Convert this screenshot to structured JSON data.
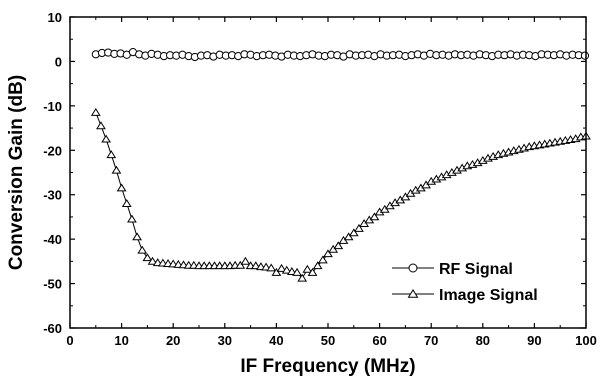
{
  "chart_data": {
    "type": "line",
    "xlabel": "IF Frequency (MHz)",
    "ylabel": "Conversion Gain (dB)",
    "xlim": [
      0,
      100
    ],
    "ylim": [
      -60,
      10
    ],
    "xticks": [
      0,
      10,
      20,
      30,
      40,
      50,
      60,
      70,
      80,
      90,
      100
    ],
    "yticks": [
      -60,
      -50,
      -40,
      -30,
      -20,
      -10,
      0,
      10
    ],
    "grid": false,
    "legend_position": "lower-right",
    "series": [
      {
        "name": "RF Signal",
        "marker": "circle",
        "color": "#000000",
        "x": [
          5,
          6.2,
          7.4,
          8.6,
          9.8,
          11,
          12.2,
          13.4,
          14.6,
          15.8,
          17,
          18.2,
          19.4,
          20.6,
          21.8,
          23,
          24.2,
          25.4,
          26.6,
          27.8,
          29,
          30.2,
          31.4,
          32.6,
          33.8,
          35,
          36.2,
          37.4,
          38.6,
          39.8,
          41,
          42.2,
          43.4,
          44.6,
          45.8,
          47,
          48.2,
          49.4,
          50.6,
          51.8,
          53,
          54.2,
          55.4,
          56.6,
          57.8,
          59,
          60.2,
          61.4,
          62.6,
          63.8,
          65,
          66.2,
          67.4,
          68.6,
          69.8,
          71,
          72.2,
          73.4,
          74.6,
          75.8,
          77,
          78.2,
          79.4,
          80.6,
          81.8,
          83,
          84.2,
          85.4,
          86.6,
          87.8,
          89,
          90.2,
          91.4,
          92.6,
          93.8,
          95,
          96.2,
          97.4,
          98.6,
          99.8
        ],
        "y": [
          1.6,
          1.9,
          2.0,
          1.7,
          1.8,
          1.5,
          2.1,
          1.6,
          1.3,
          1.7,
          1.5,
          1.2,
          1.4,
          1.3,
          1.5,
          1.2,
          1.0,
          1.3,
          1.4,
          1.1,
          1.5,
          1.3,
          1.4,
          1.2,
          1.6,
          1.5,
          1.2,
          1.4,
          1.5,
          1.3,
          1.1,
          1.5,
          1.3,
          1.2,
          1.4,
          1.6,
          1.3,
          1.2,
          1.5,
          1.4,
          1.1,
          1.6,
          1.3,
          1.4,
          1.5,
          1.2,
          1.6,
          1.3,
          1.4,
          1.5,
          1.2,
          1.4,
          1.6,
          1.3,
          1.7,
          1.4,
          1.5,
          1.3,
          1.6,
          1.4,
          1.5,
          1.3,
          1.6,
          1.4,
          1.2,
          1.5,
          1.4,
          1.6,
          1.3,
          1.5,
          1.4,
          1.2,
          1.6,
          1.5,
          1.4,
          1.6,
          1.3,
          1.5,
          1.4,
          1.3
        ]
      },
      {
        "name": "Image Signal",
        "marker": "triangle",
        "color": "#000000",
        "x": [
          5,
          6,
          7,
          8,
          9,
          10,
          11,
          12,
          13,
          14,
          15,
          16,
          17,
          18,
          19,
          20,
          21,
          22,
          23,
          24,
          25,
          26,
          27,
          28,
          29,
          30,
          31,
          32,
          33,
          34,
          35,
          36,
          37,
          38,
          39,
          40,
          41,
          42,
          43,
          44,
          45,
          46,
          47,
          48,
          49,
          50,
          51,
          52,
          53,
          54,
          55,
          56,
          57,
          58,
          59,
          60,
          61,
          62,
          63,
          64,
          65,
          66,
          67,
          68,
          69,
          70,
          71,
          72,
          73,
          74,
          75,
          76,
          77,
          78,
          79,
          80,
          81,
          82,
          83,
          84,
          85,
          86,
          87,
          88,
          89,
          90,
          91,
          92,
          93,
          94,
          95,
          96,
          97,
          98,
          99,
          100
        ],
        "y": [
          -11.5,
          -14.5,
          -17.5,
          -21.0,
          -24.5,
          -28.5,
          -32.0,
          -35.5,
          -39.5,
          -42.5,
          -44.2,
          -45.0,
          -45.3,
          -45.4,
          -45.5,
          -45.6,
          -45.7,
          -45.8,
          -45.9,
          -45.9,
          -46.0,
          -46.0,
          -46.0,
          -46.0,
          -46.0,
          -46.0,
          -46.0,
          -45.9,
          -45.9,
          -45.0,
          -46.0,
          -46.0,
          -46.2,
          -46.3,
          -46.5,
          -47.5,
          -46.6,
          -47.0,
          -47.3,
          -47.5,
          -48.8,
          -46.8,
          -47.5,
          -46.0,
          -44.7,
          -43.3,
          -42.3,
          -41.5,
          -40.3,
          -39.5,
          -38.6,
          -37.6,
          -36.5,
          -35.7,
          -35.0,
          -33.9,
          -33.3,
          -32.5,
          -31.8,
          -31.2,
          -30.5,
          -29.7,
          -29.0,
          -28.5,
          -27.8,
          -27.0,
          -26.5,
          -26.0,
          -25.5,
          -25.0,
          -24.5,
          -24.0,
          -23.5,
          -23.2,
          -22.8,
          -22.3,
          -21.8,
          -21.4,
          -21.0,
          -20.7,
          -20.4,
          -20.1,
          -19.8,
          -19.5,
          -19.2,
          -19.0,
          -18.8,
          -18.6,
          -18.4,
          -18.2,
          -18.0,
          -17.8,
          -17.6,
          -17.4,
          -17.0,
          -16.8
        ]
      }
    ]
  }
}
